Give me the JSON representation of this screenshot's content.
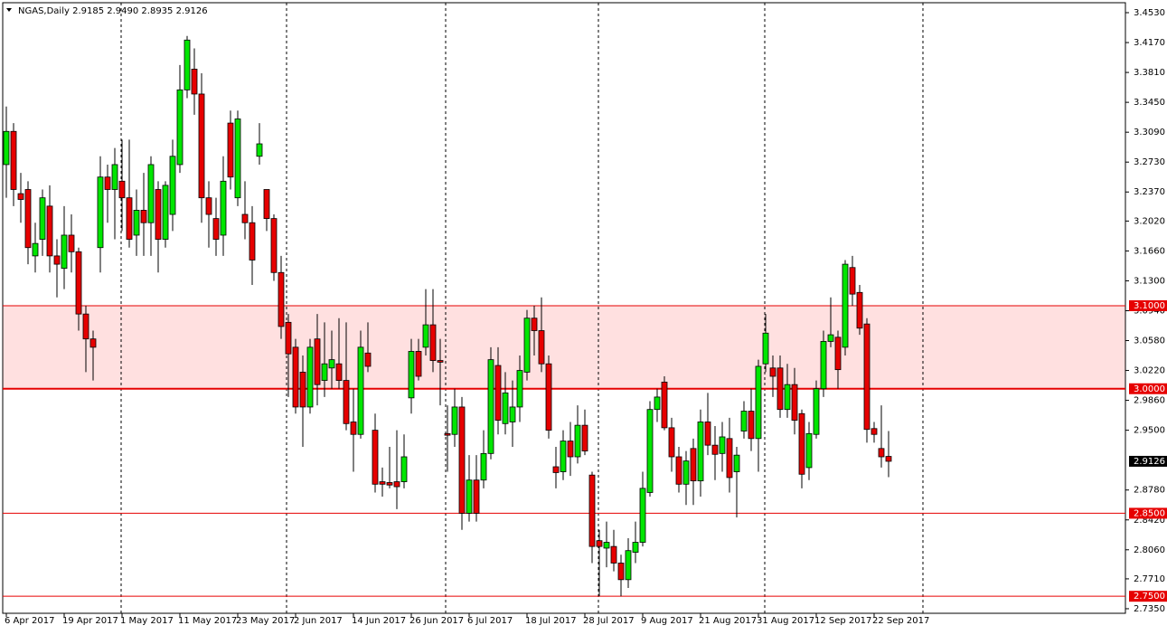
{
  "chart_data": {
    "type": "candlestick",
    "title": "NGAS,Daily  2.9185 2.9490 2.8935 2.9126",
    "categories": [
      "6 Apr 2017",
      null,
      null,
      null,
      null,
      null,
      null,
      null,
      "19 Apr 2017",
      null,
      null,
      null,
      null,
      null,
      null,
      null,
      "1 May 2017",
      null,
      null,
      null,
      null,
      null,
      null,
      null,
      "11 May 2017",
      null,
      null,
      null,
      null,
      null,
      null,
      null,
      "23 May 2017",
      null,
      null,
      null,
      null,
      null,
      null,
      null,
      "2 Jun 2017",
      null,
      null,
      null,
      null,
      null,
      null,
      null,
      "14 Jun 2017",
      null,
      null,
      null,
      null,
      null,
      null,
      null,
      "26 Jun 2017",
      null,
      null,
      null,
      null,
      null,
      null,
      null,
      "6 Jul 2017",
      null,
      null,
      null,
      null,
      null,
      null,
      null,
      "18 Jul 2017",
      null,
      null,
      null,
      null,
      null,
      null,
      null,
      "28 Jul 2017",
      null,
      null,
      null,
      null,
      null,
      null,
      null,
      "9 Aug 2017",
      null,
      null,
      null,
      null,
      null,
      null,
      null,
      "21 Aug 2017",
      null,
      null,
      null,
      null,
      null,
      null,
      null,
      "31 Aug 2017",
      null,
      null,
      null,
      null,
      null,
      null,
      null,
      "12 Sep 2017",
      null,
      null,
      null,
      null,
      null,
      null,
      null,
      "22 Sep 2017",
      null,
      null
    ],
    "open": [
      3.27,
      3.31,
      3.235,
      3.24,
      3.16,
      3.18,
      3.22,
      3.16,
      3.145,
      3.185,
      3.165,
      3.09,
      3.06,
      3.17,
      3.255,
      3.24,
      3.25,
      3.23,
      3.185,
      3.215,
      3.2,
      3.24,
      3.18,
      3.21,
      3.27,
      3.36,
      3.385,
      3.355,
      3.23,
      3.205,
      3.185,
      3.32,
      3.23,
      3.21,
      3.2,
      3.28,
      3.24,
      3.205,
      3.14,
      3.08,
      3.05,
      3.02,
      2.978,
      3.06,
      3.01,
      3.025,
      3.03,
      3.01,
      2.96,
      2.945,
      3.043,
      2.95,
      2.888,
      2.887,
      2.888,
      2.888,
      2.989,
      3.045,
      3.05,
      3.077,
      3.034,
      2.946,
      2.945,
      2.978,
      2.85,
      2.89,
      2.89,
      2.922,
      3.028,
      2.958,
      2.96,
      2.978,
      3.02,
      3.085,
      3.07,
      3.03,
      2.906,
      2.9,
      2.937,
      2.918,
      2.956,
      2.896,
      2.817,
      2.808,
      2.81,
      2.79,
      2.77,
      2.803,
      2.815,
      2.875,
      2.975,
      3.008,
      2.953,
      2.918,
      2.885,
      2.928,
      2.889,
      2.96,
      2.932,
      2.922,
      2.94,
      2.9,
      2.949,
      2.973,
      2.94,
      3.03,
      3.025,
      3.025,
      2.975,
      3.005,
      2.97,
      2.905,
      2.945,
      3.0,
      3.057,
      3.062,
      3.05,
      3.146,
      3.116,
      3.078,
      2.952,
      2.928,
      2.9185
    ],
    "high": [
      3.34,
      3.32,
      3.26,
      3.25,
      3.2,
      3.24,
      3.245,
      3.18,
      3.22,
      3.21,
      3.17,
      3.1,
      3.07,
      3.28,
      3.27,
      3.29,
      3.3,
      3.3,
      3.24,
      3.26,
      3.28,
      3.25,
      3.25,
      3.3,
      3.39,
      3.425,
      3.41,
      3.38,
      3.25,
      3.23,
      3.28,
      3.335,
      3.335,
      3.25,
      3.22,
      3.32,
      3.24,
      3.21,
      3.16,
      3.09,
      3.06,
      3.04,
      3.06,
      3.09,
      3.08,
      3.07,
      3.085,
      3.08,
      3.0,
      3.07,
      3.08,
      2.97,
      2.905,
      2.93,
      2.95,
      2.945,
      3.06,
      3.06,
      3.12,
      3.12,
      3.06,
      2.98,
      3.0,
      2.99,
      2.92,
      2.92,
      2.95,
      3.05,
      3.05,
      3.02,
      3.01,
      3.04,
      3.095,
      3.1,
      3.11,
      3.04,
      2.93,
      2.95,
      2.96,
      2.98,
      2.975,
      2.9,
      2.83,
      2.84,
      2.83,
      2.8,
      2.82,
      2.84,
      2.9,
      2.985,
      3.0,
      3.015,
      2.965,
      2.93,
      2.925,
      2.94,
      2.975,
      2.995,
      2.955,
      2.96,
      2.965,
      2.93,
      2.985,
      3.0,
      3.035,
      3.09,
      3.04,
      3.04,
      3.03,
      3.025,
      2.975,
      2.96,
      3.01,
      3.07,
      3.11,
      3.07,
      3.155,
      3.16,
      3.125,
      3.085,
      2.96,
      2.98,
      2.949
    ],
    "low": [
      3.23,
      3.22,
      3.2,
      3.15,
      3.14,
      3.16,
      3.14,
      3.11,
      3.12,
      3.14,
      3.07,
      3.02,
      3.01,
      3.14,
      3.2,
      3.18,
      3.19,
      3.17,
      3.16,
      3.16,
      3.16,
      3.14,
      3.17,
      3.19,
      3.26,
      3.35,
      3.33,
      3.2,
      3.17,
      3.16,
      3.16,
      3.24,
      3.22,
      3.18,
      3.125,
      3.27,
      3.19,
      3.13,
      3.06,
      2.99,
      2.97,
      2.93,
      2.97,
      2.98,
      2.99,
      3.0,
      3.0,
      2.95,
      2.9,
      2.94,
      3.02,
      2.875,
      2.87,
      2.88,
      2.855,
      2.88,
      2.97,
      3.01,
      3.04,
      3.02,
      2.98,
      2.9,
      2.93,
      2.83,
      2.84,
      2.84,
      2.88,
      2.915,
      2.945,
      2.945,
      2.93,
      2.96,
      3.01,
      3.04,
      3.02,
      2.94,
      2.88,
      2.89,
      2.895,
      2.91,
      2.92,
      2.79,
      2.75,
      2.785,
      2.78,
      2.75,
      2.76,
      2.79,
      2.81,
      2.87,
      2.96,
      2.95,
      2.9,
      2.875,
      2.86,
      2.86,
      2.87,
      2.92,
      2.89,
      2.9,
      2.875,
      2.845,
      2.94,
      2.925,
      2.9,
      3.02,
      2.99,
      2.965,
      2.965,
      2.945,
      2.88,
      2.89,
      2.94,
      2.99,
      3.05,
      3.0,
      3.04,
      3.1,
      3.065,
      2.935,
      2.935,
      2.905,
      2.8935
    ],
    "close": [
      3.31,
      3.24,
      3.228,
      3.17,
      3.175,
      3.23,
      3.16,
      3.15,
      3.185,
      3.165,
      3.09,
      3.06,
      3.05,
      3.255,
      3.24,
      3.27,
      3.23,
      3.18,
      3.215,
      3.2,
      3.27,
      3.18,
      3.245,
      3.28,
      3.36,
      3.42,
      3.355,
      3.23,
      3.21,
      3.18,
      3.25,
      3.255,
      3.325,
      3.2,
      3.155,
      3.295,
      3.205,
      3.14,
      3.075,
      3.042,
      2.978,
      2.978,
      3.05,
      3.005,
      3.03,
      3.035,
      3.01,
      2.958,
      2.945,
      3.05,
      3.027,
      2.885,
      2.885,
      2.884,
      2.882,
      2.918,
      3.045,
      3.015,
      3.077,
      3.034,
      3.032,
      2.944,
      2.978,
      2.85,
      2.89,
      2.85,
      2.922,
      3.035,
      2.962,
      2.995,
      2.978,
      3.022,
      3.085,
      3.07,
      3.03,
      2.95,
      2.899,
      2.937,
      2.918,
      2.956,
      2.925,
      2.81,
      2.81,
      2.815,
      2.79,
      2.77,
      2.805,
      2.815,
      2.88,
      2.975,
      2.99,
      2.953,
      2.918,
      2.885,
      2.913,
      2.889,
      2.96,
      2.932,
      2.921,
      2.942,
      2.893,
      2.92,
      2.973,
      2.94,
      3.027,
      3.067,
      3.015,
      2.975,
      3.005,
      2.962,
      2.897,
      2.946,
      3.0,
      3.057,
      3.065,
      3.023,
      3.15,
      3.114,
      3.073,
      2.951,
      2.945,
      2.918,
      2.9126
    ],
    "up_color": "#00e600",
    "down_color": "#e60000",
    "ylim": [
      2.7295,
      3.465
    ],
    "yticks": [
      {
        "value": 2.735,
        "label": "2.7350"
      },
      {
        "value": 2.771,
        "label": "2.7710"
      },
      {
        "value": 2.806,
        "label": "2.8060"
      },
      {
        "value": 2.842,
        "label": "2.8420"
      },
      {
        "value": 2.878,
        "label": "2.8780"
      },
      {
        "value": 2.95,
        "label": "2.9500"
      },
      {
        "value": 2.986,
        "label": "2.9860"
      },
      {
        "value": 3.022,
        "label": "3.0220"
      },
      {
        "value": 3.058,
        "label": "3.0580"
      },
      {
        "value": 3.094,
        "label": "3.0940"
      },
      {
        "value": 3.13,
        "label": "3.1300"
      },
      {
        "value": 3.166,
        "label": "3.1660"
      },
      {
        "value": 3.202,
        "label": "3.2020"
      },
      {
        "value": 3.237,
        "label": "3.2370"
      },
      {
        "value": 3.273,
        "label": "3.2730"
      },
      {
        "value": 3.309,
        "label": "3.3090"
      },
      {
        "value": 3.345,
        "label": "3.3450"
      },
      {
        "value": 3.381,
        "label": "3.3810"
      },
      {
        "value": 3.417,
        "label": "3.4170"
      },
      {
        "value": 3.453,
        "label": "3.4530"
      }
    ],
    "levels": [
      {
        "value": 3.1,
        "label": "3.1000"
      },
      {
        "value": 3.0,
        "label": "3.0000"
      },
      {
        "value": 2.85,
        "label": "2.8500"
      },
      {
        "value": 2.75,
        "label": "2.7500"
      }
    ],
    "level_color": "#e60000",
    "band_color": "#ffe0e0"
  }
}
